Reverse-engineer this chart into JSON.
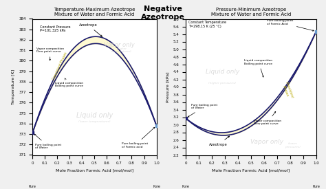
{
  "title_center": "Negative\nAzeotrope",
  "left_title": "Temperature-Maximum Azeotrope\nMixture of Water and Formic Acid",
  "right_title": "Pressure-Minimum Azeotrope\nMixture of Water and Formic Acid",
  "left_xlabel": "Mole Fraction Formic Acid [mol/mol]",
  "right_xlabel": "Mole Fraction Formic Acid [mol/mol]",
  "left_ylabel": "Temperature [K]",
  "right_ylabel": "Pressure [kPa]",
  "left_ylim": [
    371,
    384
  ],
  "right_ylim": [
    2.2,
    5.8
  ],
  "left_yticks": [
    371,
    372,
    373,
    374,
    375,
    376,
    377,
    378,
    379,
    380,
    381,
    382,
    383,
    384
  ],
  "right_yticks": [
    2.2,
    2.4,
    2.6,
    2.8,
    3.0,
    3.2,
    3.4,
    3.6,
    3.8,
    4.0,
    4.2,
    4.4,
    4.6,
    4.8,
    5.0,
    5.2,
    5.4,
    5.6,
    5.8
  ],
  "xticks": [
    0,
    0.1,
    0.2,
    0.3,
    0.4,
    0.5,
    0.6,
    0.7,
    0.8,
    0.9,
    1.0
  ],
  "curve_color": "#1a1a6e",
  "fill_color": "#fffacd",
  "fill_edge": "#d4c86a",
  "bg_color": "#ffffff",
  "left_const_pressure": "Constant Pressure\nP=101.325 kPa",
  "right_const_temp": "Constant Temperature\nT=298.15 K (25 °C)",
  "left_annotations": {
    "azeotrope_point": [
      0.577,
      382.15
    ],
    "pure_water": [
      0.0,
      373.15
    ],
    "pure_formic": [
      1.0,
      373.8
    ]
  },
  "right_annotations": {
    "azeotrope_point": [
      0.35,
      2.74
    ],
    "pure_water": [
      0.0,
      3.17
    ],
    "pure_formic": [
      1.0,
      5.47
    ]
  }
}
